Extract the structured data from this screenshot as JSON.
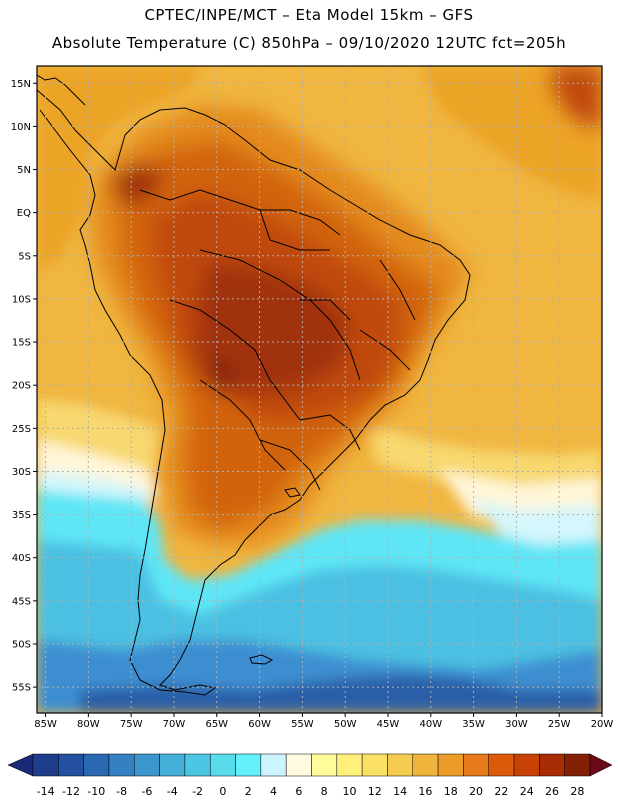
{
  "header": {
    "line1": "CPTEC/INPE/MCT –  Eta Model 15km – GFS",
    "line2": "Absolute Temperature (C) 850hPa – 09/10/2020 12UTC fct=205h"
  },
  "map": {
    "lon_labels": [
      "85W",
      "80W",
      "75W",
      "70W",
      "65W",
      "60W",
      "55W",
      "50W",
      "45W",
      "40W",
      "35W",
      "30W",
      "25W",
      "20W"
    ],
    "lat_labels": [
      "15N",
      "10N",
      "5N",
      "EQ",
      "5S",
      "10S",
      "15S",
      "20S",
      "25S",
      "30S",
      "35S",
      "40S",
      "45S",
      "50S",
      "55S"
    ],
    "lon_values": [
      -85,
      -80,
      -75,
      -70,
      -65,
      -60,
      -55,
      -50,
      -45,
      -40,
      -35,
      -30,
      -25,
      -20
    ],
    "lat_values": [
      15,
      10,
      5,
      0,
      -5,
      -10,
      -15,
      -20,
      -25,
      -30,
      -35,
      -40,
      -45,
      -50,
      -55
    ],
    "lon_range": [
      -86,
      -20
    ],
    "lat_range": [
      17,
      -58
    ],
    "grid": "dotted"
  },
  "colorbar": {
    "labels": [
      "-14",
      "-12",
      "-10",
      "-8",
      "-6",
      "-4",
      "-2",
      "0",
      "2",
      "4",
      "6",
      "8",
      "10",
      "12",
      "14",
      "16",
      "18",
      "20",
      "22",
      "24",
      "26",
      "28"
    ],
    "colors": [
      "#1e3e8c",
      "#2452a0",
      "#2a68b2",
      "#3480c2",
      "#3c98cc",
      "#44b0d8",
      "#4cc6e2",
      "#58dcec",
      "#64f0fa",
      "#ccf4fc",
      "#fffae0",
      "#fffc9c",
      "#fff07a",
      "#fae064",
      "#f5cc50",
      "#f0b43c",
      "#ec9c28",
      "#e67a18",
      "#dc5a0a",
      "#c84206",
      "#a82c04",
      "#842004"
    ],
    "arrow_left": "#1a2a78",
    "arrow_right": "#6a0a18"
  },
  "field_colors": {
    "cold_deep": "#2c5ea8",
    "cold_mid": "#3c8ed0",
    "cold": "#4cc0e2",
    "cyan": "#5ee6f6",
    "pale": "#d4f6fc",
    "cream": "#fff6d8",
    "light_yellow": "#f8d870",
    "gold": "#f0b640",
    "orange_gold": "#eca428",
    "orange": "#e48a1c",
    "dark_orange": "#d26410",
    "red_orange": "#c04808",
    "brown": "#a03008",
    "dark_brown": "#7a1c08"
  }
}
